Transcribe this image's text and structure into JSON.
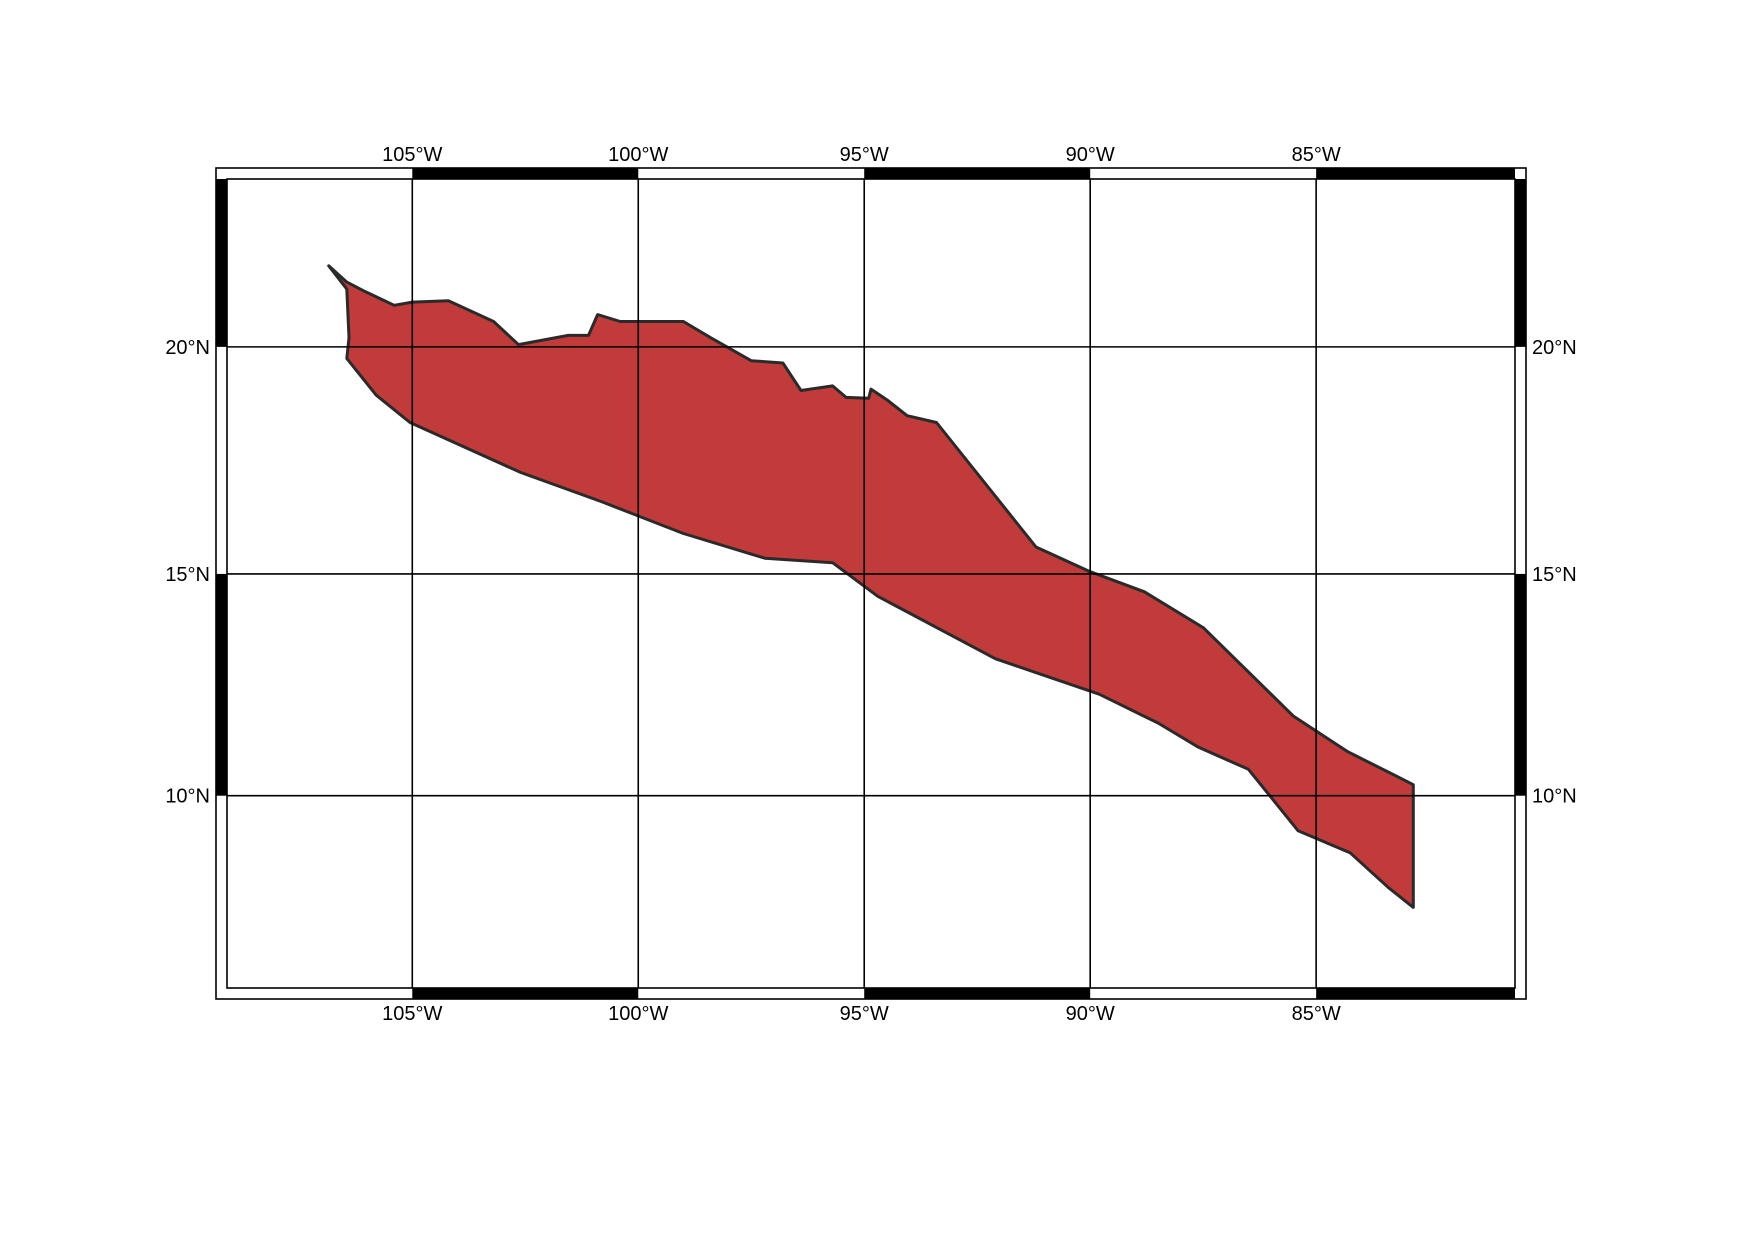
{
  "map": {
    "projection": "mercator",
    "lon_range": [
      -109.1,
      -80.6
    ],
    "lat_range": [
      5.6,
      23.6
    ],
    "frame_style": "fancy",
    "grid": true,
    "lon_ticks": [
      -105,
      -100,
      -95,
      -90,
      -85
    ],
    "lat_ticks": [
      10,
      15,
      20
    ],
    "lon_labels": [
      "105°W",
      "100°W",
      "95°W",
      "90°W",
      "85°W"
    ],
    "lat_labels": [
      "10°N",
      "15°N",
      "20°N"
    ],
    "polygon": {
      "fill": "#c23b3b",
      "stroke": "#2a2a2a",
      "coords": [
        [
          -106.85,
          21.75
        ],
        [
          -106.45,
          21.4
        ],
        [
          -106.05,
          21.2
        ],
        [
          -105.4,
          20.9
        ],
        [
          -105.0,
          20.97
        ],
        [
          -104.2,
          21.0
        ],
        [
          -103.2,
          20.55
        ],
        [
          -102.65,
          20.05
        ],
        [
          -101.55,
          20.25
        ],
        [
          -101.1,
          20.25
        ],
        [
          -100.9,
          20.7
        ],
        [
          -100.4,
          20.55
        ],
        [
          -99.0,
          20.55
        ],
        [
          -98.4,
          20.2
        ],
        [
          -97.5,
          19.7
        ],
        [
          -96.8,
          19.65
        ],
        [
          -96.4,
          19.05
        ],
        [
          -95.7,
          19.15
        ],
        [
          -95.4,
          18.9
        ],
        [
          -94.9,
          18.88
        ],
        [
          -94.85,
          19.08
        ],
        [
          -94.5,
          18.85
        ],
        [
          -94.05,
          18.5
        ],
        [
          -93.4,
          18.35
        ],
        [
          -91.2,
          15.6
        ],
        [
          -90.0,
          15.05
        ],
        [
          -88.8,
          14.6
        ],
        [
          -87.5,
          13.8
        ],
        [
          -85.5,
          11.8
        ],
        [
          -84.3,
          11.0
        ],
        [
          -82.85,
          10.25
        ],
        [
          -82.85,
          7.45
        ],
        [
          -83.4,
          7.9
        ],
        [
          -84.25,
          8.7
        ],
        [
          -85.4,
          9.2
        ],
        [
          -86.5,
          10.6
        ],
        [
          -87.6,
          11.1
        ],
        [
          -88.5,
          11.65
        ],
        [
          -89.8,
          12.3
        ],
        [
          -92.1,
          13.1
        ],
        [
          -94.7,
          14.5
        ],
        [
          -95.7,
          15.25
        ],
        [
          -97.2,
          15.35
        ],
        [
          -99.0,
          15.9
        ],
        [
          -100.8,
          16.6
        ],
        [
          -102.6,
          17.25
        ],
        [
          -105.05,
          18.35
        ],
        [
          -105.8,
          18.95
        ],
        [
          -106.45,
          19.75
        ],
        [
          -106.4,
          20.2
        ],
        [
          -106.45,
          21.25
        ]
      ]
    }
  }
}
